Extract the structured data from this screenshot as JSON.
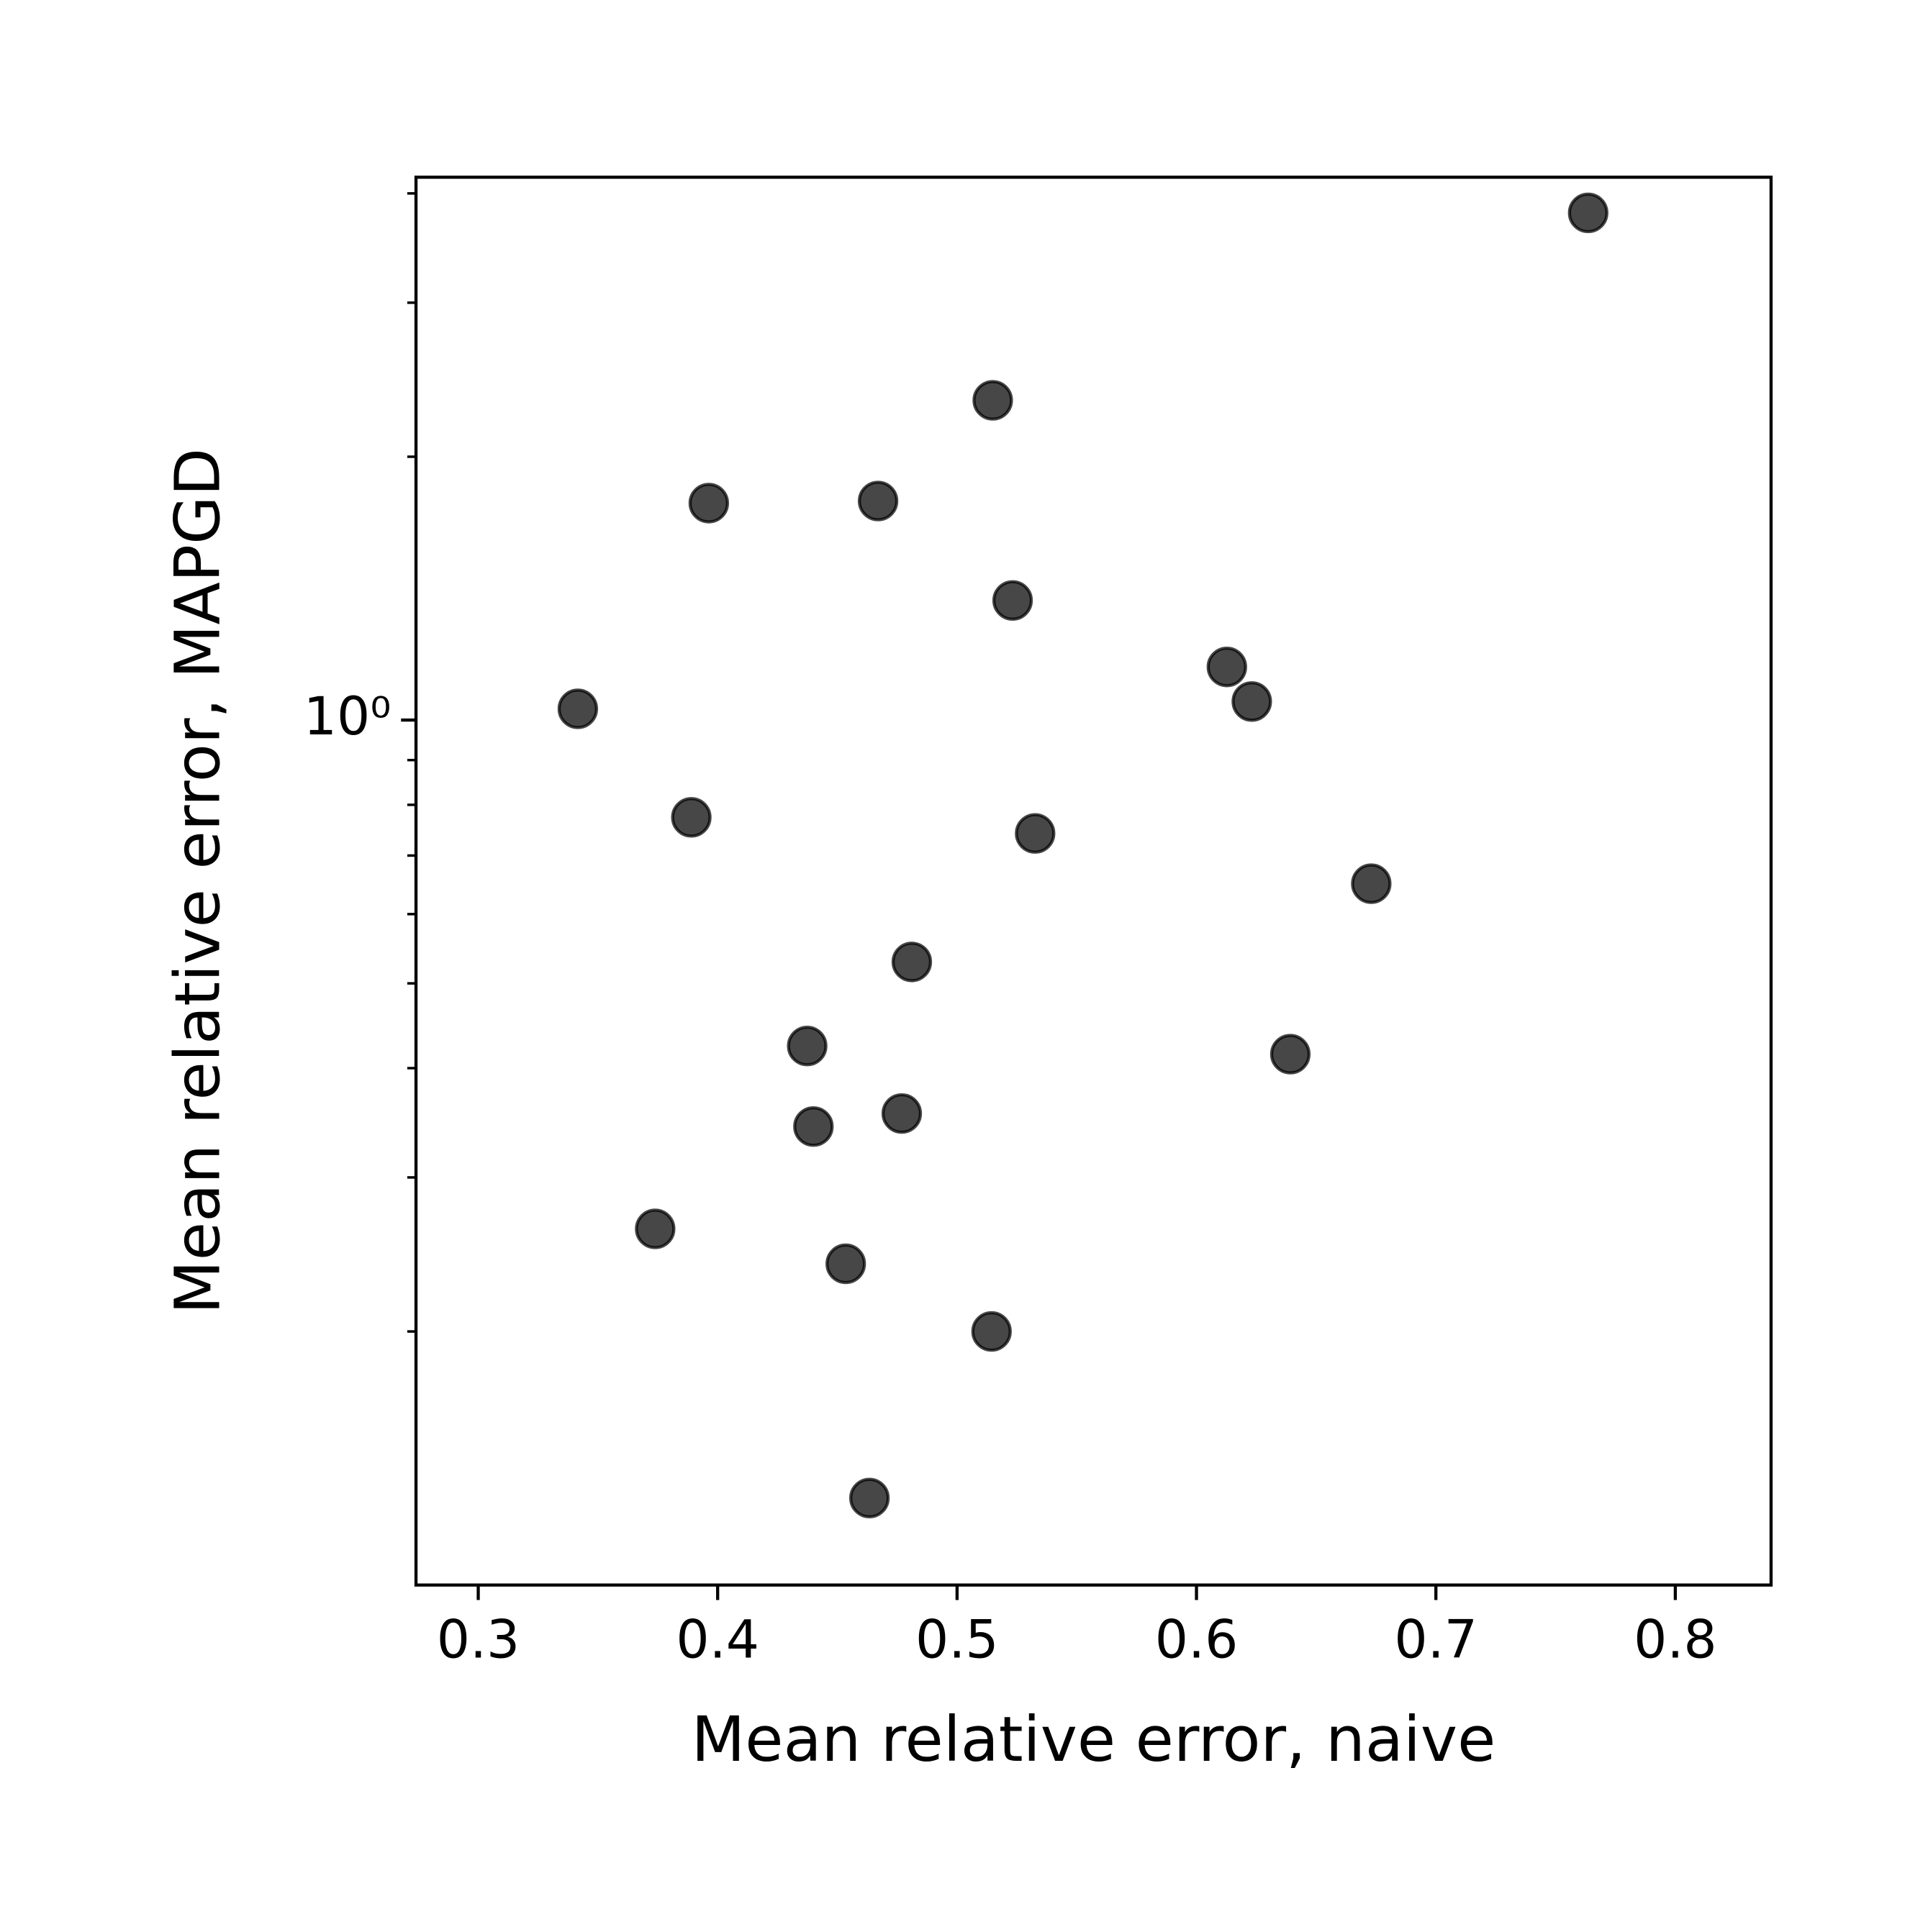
{
  "chart_data": {
    "type": "scatter",
    "x_label": "Mean relative error, naive",
    "y_label": "Mean relative error, MAPGD",
    "x": [
      0.7636,
      0.5149,
      0.3963,
      0.467,
      0.5232,
      0.6127,
      0.6231,
      0.3416,
      0.389,
      0.5326,
      0.673,
      0.4811,
      0.4374,
      0.6392,
      0.4769,
      0.44,
      0.3739,
      0.4535,
      0.5144,
      0.4634
    ],
    "values": [
      3.8,
      2.32,
      1.77,
      1.78,
      1.37,
      1.15,
      1.05,
      1.03,
      0.774,
      0.742,
      0.65,
      0.529,
      0.424,
      0.415,
      0.355,
      0.343,
      0.262,
      0.239,
      0.2,
      0.129
    ],
    "color": "#000000",
    "alpha": 0.72,
    "xlim": [
      0.274,
      0.84
    ],
    "xticks": [
      0.3,
      0.4,
      0.5,
      0.6,
      0.7,
      0.8
    ],
    "ylim": [
      0.1026,
      4.174
    ],
    "y_log": true,
    "yticks": [
      {
        "value": 1,
        "label": "10⁰"
      }
    ],
    "y_minor_ticks": [
      0.2,
      0.3,
      0.4,
      0.5,
      0.6,
      0.7,
      0.8,
      0.9,
      2,
      3,
      4
    ],
    "grid": false
  }
}
